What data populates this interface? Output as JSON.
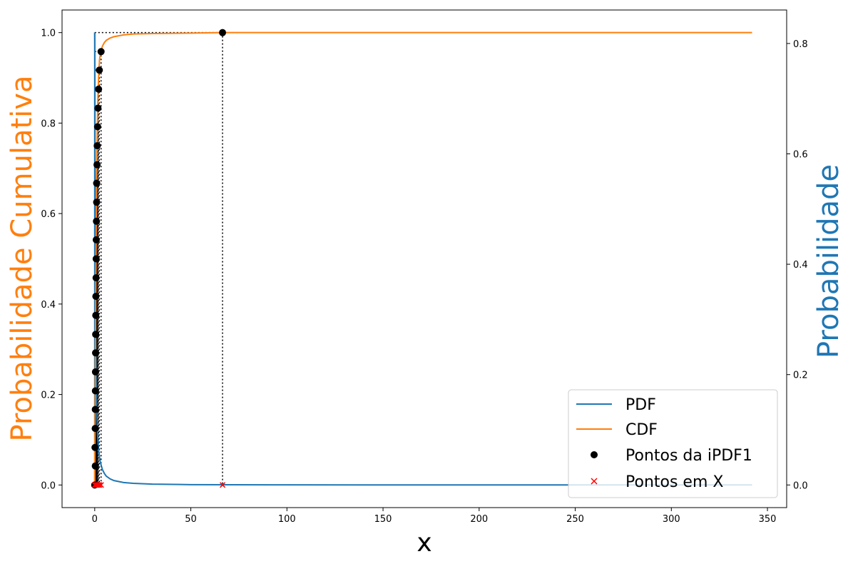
{
  "chart_data": {
    "type": "line",
    "xlabel": "x",
    "ylabel_left": "Probabilidade Cumulativa",
    "ylabel_right": "Probabilidade",
    "xlim": [
      -17,
      360
    ],
    "ylim_left": [
      -0.05,
      1.05
    ],
    "ylim_right": [
      -0.041,
      0.8607
    ],
    "xticks": [
      0,
      50,
      100,
      150,
      200,
      250,
      300,
      350
    ],
    "yticks_left": [
      0.0,
      0.2,
      0.4,
      0.6,
      0.8,
      1.0
    ],
    "yticks_right": [
      0.0,
      0.2,
      0.4,
      0.6,
      0.8
    ],
    "legend_position": "lower-right",
    "grid": false,
    "colors": {
      "pdf": "#1f77b4",
      "cdf": "#ff7f0e",
      "points": "#000000",
      "x_points": "#ff0000",
      "left_label": "#ff7f0e",
      "right_label": "#1f77b4"
    },
    "series": [
      {
        "name": "PDF",
        "kind": "line",
        "axis": "right",
        "color": "#1f77b4",
        "x": [
          0,
          0.05,
          0.1,
          0.2,
          0.3,
          0.5,
          0.75,
          1,
          1.5,
          2,
          2.5,
          3,
          4,
          5,
          6,
          8,
          10,
          15,
          20,
          30,
          50,
          100,
          200,
          342
        ],
        "y": [
          0.82,
          0.8,
          0.72,
          0.55,
          0.42,
          0.28,
          0.19,
          0.14,
          0.09,
          0.065,
          0.05,
          0.04,
          0.028,
          0.021,
          0.016,
          0.011,
          0.008,
          0.0045,
          0.003,
          0.0015,
          0.0006,
          0.0002,
          5e-05,
          0.0
        ]
      },
      {
        "name": "CDF",
        "kind": "line",
        "axis": "left",
        "color": "#ff7f0e",
        "x": [
          0,
          0.2,
          0.4,
          0.6,
          0.8,
          1,
          1.3,
          1.6,
          2,
          2.5,
          3,
          4,
          5,
          6,
          8,
          10,
          15,
          20,
          30,
          50,
          66,
          100,
          200,
          342
        ],
        "y": [
          0.0,
          0.15,
          0.3,
          0.45,
          0.58,
          0.68,
          0.78,
          0.85,
          0.9,
          0.94,
          0.955,
          0.97,
          0.978,
          0.983,
          0.988,
          0.991,
          0.995,
          0.997,
          0.998,
          0.999,
          1.0,
          1.0,
          1.0,
          1.0
        ]
      },
      {
        "name": "Pontos da iPDF1",
        "kind": "scatter",
        "axis": "left",
        "color": "#000000",
        "x": [
          0,
          0.3,
          0.15,
          0.25,
          0.3,
          0.35,
          0.4,
          0.45,
          0.5,
          0.55,
          0.6,
          0.7,
          0.75,
          0.8,
          0.9,
          1.0,
          1.0,
          1.2,
          1.3,
          1.5,
          1.7,
          2.0,
          2.4,
          3.3,
          66.5
        ],
        "y": [
          0.0,
          0.042,
          0.083,
          0.125,
          0.167,
          0.208,
          0.25,
          0.292,
          0.333,
          0.375,
          0.417,
          0.458,
          0.5,
          0.542,
          0.583,
          0.625,
          0.667,
          0.708,
          0.75,
          0.792,
          0.833,
          0.875,
          0.917,
          0.958,
          1.0
        ]
      },
      {
        "name": "Pontos em X",
        "kind": "scatter",
        "axis": "left",
        "color": "#ff0000",
        "x": [
          0,
          0.3,
          0.5,
          1.0,
          1.5,
          2.0,
          2.4,
          3.3,
          66.5
        ],
        "y": [
          0,
          0,
          0,
          0,
          0,
          0,
          0,
          0,
          0
        ]
      }
    ]
  }
}
